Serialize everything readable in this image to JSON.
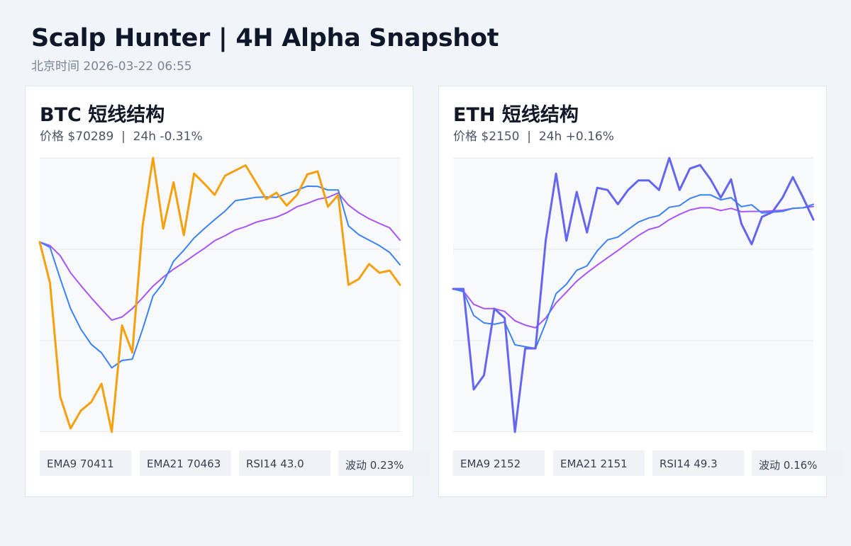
{
  "header": {
    "title": "Scalp Hunter | 4H Alpha Snapshot",
    "subtitle": "北京时间 2026-03-22 06:55"
  },
  "panels": [
    {
      "title": "BTC 短线结构",
      "subtitle": "价格 $70289  |  24h -0.31%",
      "stats": [
        "EMA9 70411",
        "EMA21 70463",
        "RSI14 43.0",
        "波动 0.23%"
      ]
    },
    {
      "title": "ETH 短线结构",
      "subtitle": "价格 $2150  |  24h +0.16%",
      "stats": [
        "EMA9 2152",
        "EMA21 2151",
        "RSI14 49.3",
        "波动 0.16%"
      ]
    }
  ],
  "colors": {
    "btc_price": "#f5a00f",
    "eth_price": "#6366f1",
    "ema9": "#3b82f6",
    "ema21": "#a855f7",
    "grid": "#e5e7eb",
    "plot_bg": "#f8f9fb"
  },
  "chart_data": [
    {
      "type": "line",
      "grid": true,
      "ylim": [
        0,
        100
      ],
      "x": [
        0,
        1,
        2,
        3,
        4,
        5,
        6,
        7,
        8,
        9,
        10,
        11,
        12,
        13,
        14,
        15,
        16,
        17,
        18,
        19,
        20,
        21,
        22,
        23,
        24,
        25,
        26,
        27,
        28,
        29,
        30,
        31,
        32,
        33,
        34,
        35
      ],
      "series": [
        {
          "values": [
            69.3,
            54.4,
            12.8,
            1.3,
            7.8,
            10.9,
            17.6,
            0.0,
            38.9,
            29.0,
            75.2,
            100.0,
            74.2,
            91.1,
            71.8,
            94.3,
            90.6,
            86.5,
            93.5,
            95.4,
            97.3,
            91.1,
            85.0,
            87.3,
            82.6,
            86.5,
            94.0,
            95.1,
            82.2,
            86.5,
            53.7,
            55.8,
            61.3,
            58.1,
            58.9,
            53.7
          ],
          "color": "#f5a00f"
        },
        {
          "values": [
            69.3,
            67.4,
            55.9,
            45.0,
            37.5,
            32.0,
            28.9,
            23.4,
            26.1,
            26.6,
            37.5,
            49.6,
            54.4,
            62.3,
            66.3,
            70.8,
            74.2,
            77.5,
            80.6,
            84.4,
            85.0,
            85.6,
            85.8,
            85.6,
            87.0,
            88.3,
            89.7,
            89.6,
            88.3,
            88.3,
            75.2,
            72.0,
            70.0,
            68.0,
            65.5,
            61.0
          ],
          "color": "#3b82f6"
        },
        {
          "values": [
            69.3,
            68.0,
            64.3,
            58.1,
            53.4,
            49.0,
            44.8,
            40.8,
            42.0,
            45.0,
            49.0,
            53.2,
            56.5,
            59.4,
            61.8,
            64.5,
            67.0,
            69.8,
            71.6,
            73.7,
            74.9,
            76.5,
            77.5,
            78.4,
            80.0,
            82.2,
            83.4,
            84.9,
            85.6,
            87.2,
            82.8,
            80.0,
            77.8,
            76.1,
            74.5,
            70.0
          ],
          "color": "#a855f7"
        }
      ]
    },
    {
      "type": "line",
      "grid": true,
      "ylim": [
        0,
        100
      ],
      "x": [
        0,
        1,
        2,
        3,
        4,
        5,
        6,
        7,
        8,
        9,
        10,
        11,
        12,
        13,
        14,
        15,
        16,
        17,
        18,
        19,
        20,
        21,
        22,
        23,
        24,
        25,
        26,
        27,
        28,
        29,
        30,
        31,
        32,
        33,
        34,
        35
      ],
      "series": [
        {
          "values": [
            52.2,
            52.2,
            15.5,
            20.7,
            45.0,
            41.6,
            0.0,
            30.5,
            30.5,
            70.0,
            94.3,
            69.8,
            87.6,
            72.8,
            89.1,
            88.3,
            83.1,
            88.3,
            91.8,
            91.8,
            88.3,
            100.0,
            88.3,
            96.1,
            97.4,
            92.2,
            85.5,
            92.2,
            76.0,
            68.5,
            78.5,
            80.2,
            85.5,
            93.0,
            85.5,
            77.5
          ],
          "color": "#6366f1"
        },
        {
          "values": [
            52.2,
            51.2,
            42.5,
            39.8,
            39.3,
            40.1,
            31.8,
            31.1,
            30.5,
            39.8,
            50.5,
            53.9,
            59.0,
            60.6,
            66.1,
            70.1,
            71.1,
            73.9,
            76.6,
            78.1,
            79.0,
            82.0,
            82.6,
            85.2,
            86.5,
            86.5,
            84.7,
            85.5,
            82.2,
            82.9,
            79.9,
            80.2,
            80.5,
            81.6,
            81.8,
            83.1
          ],
          "color": "#3b82f6"
        },
        {
          "values": [
            52.2,
            51.4,
            46.6,
            45.0,
            45.0,
            44.0,
            40.6,
            39.0,
            38.0,
            41.6,
            47.1,
            51.0,
            55.0,
            58.1,
            60.9,
            63.6,
            66.2,
            69.0,
            71.7,
            73.9,
            74.9,
            77.5,
            79.4,
            81.0,
            81.8,
            81.8,
            80.8,
            81.6,
            80.4,
            80.5,
            80.5,
            80.7,
            80.9,
            81.6,
            81.8,
            82.3
          ],
          "color": "#a855f7"
        }
      ]
    }
  ]
}
